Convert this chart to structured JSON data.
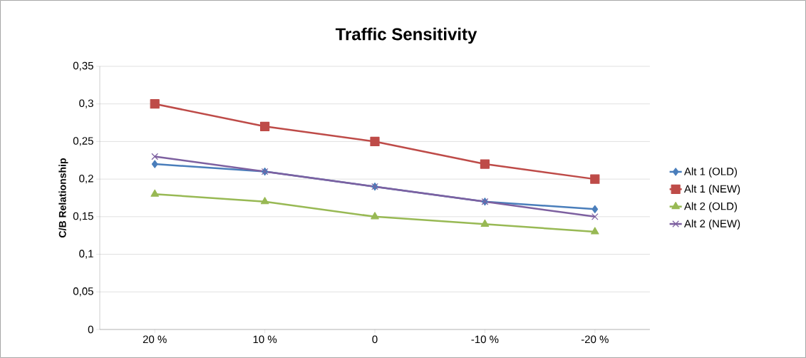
{
  "chart_data": {
    "type": "line",
    "title": "Traffic Sensitivity",
    "ylabel": "C/B Relationship",
    "categories": [
      "20 %",
      "10 %",
      "0",
      "-10 %",
      "-20 %"
    ],
    "series": [
      {
        "name": "Alt 1 (OLD)",
        "color": "#4a7ebb",
        "marker": "diamond",
        "values": [
          0.22,
          0.21,
          0.19,
          0.17,
          0.16
        ]
      },
      {
        "name": "Alt 1 (NEW)",
        "color": "#be4b48",
        "marker": "square",
        "values": [
          0.3,
          0.27,
          0.25,
          0.22,
          0.2
        ]
      },
      {
        "name": "Alt 2 (OLD)",
        "color": "#98b954",
        "marker": "triangle",
        "values": [
          0.18,
          0.17,
          0.15,
          0.14,
          0.13
        ]
      },
      {
        "name": "Alt 2 (NEW)",
        "color": "#7d60a0",
        "marker": "cross",
        "values": [
          0.23,
          0.21,
          0.19,
          0.17,
          0.15
        ]
      }
    ],
    "ylim": [
      0,
      0.35
    ],
    "yticks": [
      0,
      {
        "value": 0.05,
        "label": "0,05"
      },
      {
        "value": 0.1,
        "label": "0,1"
      },
      {
        "value": 0.15,
        "label": "0,15"
      },
      {
        "value": 0.2,
        "label": "0,2"
      },
      {
        "value": 0.25,
        "label": "0,25"
      },
      {
        "value": 0.3,
        "label": "0,3"
      },
      {
        "value": 0.35,
        "label": "0,35"
      }
    ],
    "grid": "y",
    "legend": "right"
  }
}
